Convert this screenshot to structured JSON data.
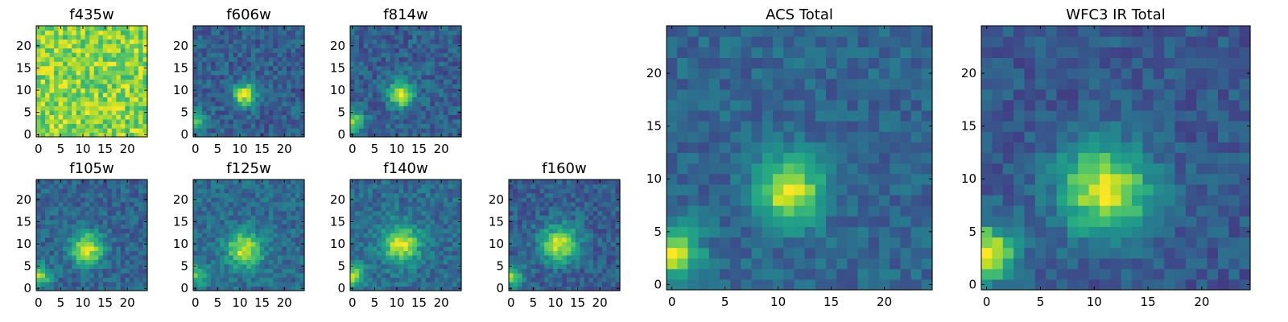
{
  "chart_data": [
    {
      "type": "heatmap",
      "title": "f435w",
      "x_ticks": [
        0,
        5,
        10,
        15,
        20
      ],
      "y_ticks": [
        0,
        5,
        10,
        15,
        20
      ],
      "grid_size": [
        25,
        25
      ],
      "colormap": "viridis",
      "pattern": {
        "kind": "noise",
        "level": 0.82,
        "spread": 0.18,
        "center": [
          11,
          10
        ],
        "peak": 0.0,
        "sigma": 3.0,
        "corner": 0.0
      }
    },
    {
      "type": "heatmap",
      "title": "f606w",
      "x_ticks": [
        0,
        5,
        10,
        15,
        20
      ],
      "y_ticks": [
        0,
        5,
        10,
        15,
        20
      ],
      "grid_size": [
        25,
        25
      ],
      "colormap": "viridis",
      "pattern": {
        "kind": "source",
        "level": 0.3,
        "spread": 0.13,
        "center": [
          11,
          9
        ],
        "peak": 0.65,
        "sigma": 1.8,
        "corner": 0.45
      }
    },
    {
      "type": "heatmap",
      "title": "f814w",
      "x_ticks": [
        0,
        5,
        10,
        15,
        20
      ],
      "y_ticks": [
        0,
        5,
        10,
        15,
        20
      ],
      "grid_size": [
        25,
        25
      ],
      "colormap": "viridis",
      "pattern": {
        "kind": "source",
        "level": 0.3,
        "spread": 0.13,
        "center": [
          11,
          9
        ],
        "peak": 0.68,
        "sigma": 2.0,
        "corner": 0.55
      }
    },
    {
      "type": "heatmap",
      "title": "f105w",
      "x_ticks": [
        0,
        5,
        10,
        15,
        20
      ],
      "y_ticks": [
        0,
        5,
        10,
        15,
        20
      ],
      "grid_size": [
        25,
        25
      ],
      "colormap": "viridis",
      "pattern": {
        "kind": "source",
        "level": 0.32,
        "spread": 0.12,
        "center": [
          11,
          9
        ],
        "peak": 0.62,
        "sigma": 2.6,
        "corner": 0.55
      }
    },
    {
      "type": "heatmap",
      "title": "f125w",
      "x_ticks": [
        0,
        5,
        10,
        15,
        20
      ],
      "y_ticks": [
        0,
        5,
        10,
        15,
        20
      ],
      "grid_size": [
        25,
        25
      ],
      "colormap": "viridis",
      "pattern": {
        "kind": "source",
        "level": 0.35,
        "spread": 0.12,
        "center": [
          11,
          9
        ],
        "peak": 0.58,
        "sigma": 2.8,
        "corner": 0.4
      }
    },
    {
      "type": "heatmap",
      "title": "f140w",
      "x_ticks": [
        0,
        5,
        10,
        15,
        20
      ],
      "y_ticks": [
        0,
        5,
        10,
        15,
        20
      ],
      "grid_size": [
        25,
        25
      ],
      "colormap": "viridis",
      "pattern": {
        "kind": "source",
        "level": 0.35,
        "spread": 0.12,
        "center": [
          11,
          10
        ],
        "peak": 0.58,
        "sigma": 3.0,
        "corner": 0.5
      }
    },
    {
      "type": "heatmap",
      "title": "f160w",
      "x_ticks": [
        0,
        5,
        10,
        15,
        20
      ],
      "y_ticks": [
        0,
        5,
        10,
        15,
        20
      ],
      "grid_size": [
        25,
        25
      ],
      "colormap": "viridis",
      "pattern": {
        "kind": "source",
        "level": 0.3,
        "spread": 0.12,
        "center": [
          11,
          10
        ],
        "peak": 0.62,
        "sigma": 3.0,
        "corner": 0.5
      }
    },
    {
      "type": "heatmap",
      "title": "ACS Total",
      "x_ticks": [
        0,
        5,
        10,
        15,
        20
      ],
      "y_ticks": [
        0,
        5,
        10,
        15,
        20
      ],
      "grid_size": [
        25,
        25
      ],
      "colormap": "viridis",
      "pattern": {
        "kind": "source",
        "level": 0.33,
        "spread": 0.1,
        "center": [
          11,
          9
        ],
        "peak": 0.62,
        "sigma": 2.2,
        "corner": 0.6
      }
    },
    {
      "type": "heatmap",
      "title": "WFC3 IR Total",
      "x_ticks": [
        0,
        5,
        10,
        15,
        20
      ],
      "y_ticks": [
        0,
        5,
        10,
        15,
        20
      ],
      "grid_size": [
        25,
        25
      ],
      "colormap": "viridis",
      "pattern": {
        "kind": "source",
        "level": 0.28,
        "spread": 0.1,
        "center": [
          11,
          9
        ],
        "peak": 0.66,
        "sigma": 3.0,
        "corner": 0.7
      }
    }
  ]
}
